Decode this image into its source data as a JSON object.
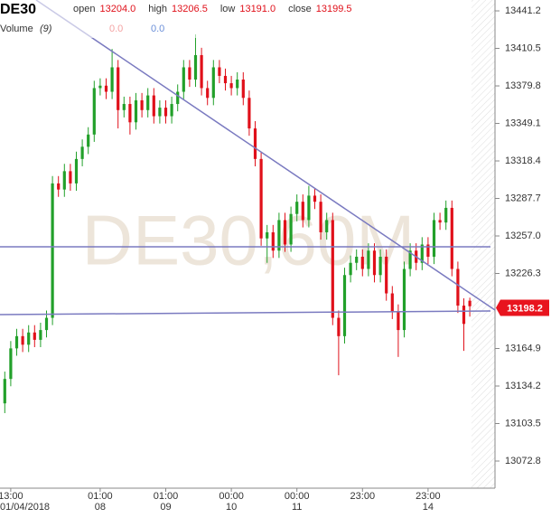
{
  "chart_data": {
    "type": "candlestick",
    "symbol": "DE30",
    "watermark": "DE30,60M",
    "ohlc_header": [
      {
        "name": "open",
        "value": 13204,
        "label": "13204.0"
      },
      {
        "name": "high",
        "value": 13206.5
      },
      {
        "name": "low",
        "value": 13191,
        "label": "13191.0"
      },
      {
        "name": "close",
        "value": 13199.5
      }
    ],
    "volume": {
      "name": "Volume",
      "period": "(9)",
      "values": [
        {
          "value": 0,
          "label": "0.0",
          "color": "#f4a3a3"
        },
        {
          "value": 0,
          "label": "0.0",
          "color": "#6b8fd8"
        }
      ]
    },
    "categories": [
      null,
      "13:00",
      null,
      null,
      null,
      null,
      null,
      null,
      null,
      null,
      null,
      null,
      null,
      null,
      null,
      null,
      "01:00",
      null,
      null,
      null,
      null,
      null,
      null,
      null,
      null,
      null,
      null,
      "01:00",
      null,
      null,
      null,
      null,
      null,
      null,
      null,
      null,
      null,
      null,
      "00:00",
      null,
      null,
      null,
      null,
      null,
      null,
      null,
      null,
      null,
      null,
      "00:00",
      null,
      null,
      null,
      null,
      null,
      null,
      null,
      null,
      null,
      null,
      "23:00",
      null,
      null,
      null,
      null,
      null,
      null,
      null,
      null,
      null,
      null,
      "23:00",
      null,
      null,
      null,
      null,
      null,
      null,
      null
    ],
    "dates": [
      null,
      "01/04/2018",
      null,
      null,
      null,
      null,
      null,
      null,
      null,
      null,
      null,
      null,
      null,
      null,
      null,
      null,
      "08",
      null,
      null,
      null,
      null,
      null,
      null,
      null,
      null,
      null,
      null,
      "09",
      null,
      null,
      null,
      null,
      null,
      null,
      null,
      null,
      null,
      null,
      "10",
      null,
      null,
      null,
      null,
      null,
      null,
      null,
      null,
      null,
      null,
      "11",
      null,
      null,
      null,
      null,
      null,
      null,
      null,
      null,
      null,
      null,
      null,
      null,
      null,
      null,
      null,
      null,
      null,
      null,
      null,
      null,
      null,
      "14",
      null,
      null,
      null,
      null,
      null,
      null,
      null
    ],
    "open": [
      13120,
      13140,
      13165,
      13175,
      13168,
      13178,
      13172,
      13180,
      13190,
      13300,
      13295,
      13310,
      13300,
      13320,
      13330,
      13340,
      13378,
      13380,
      13375,
      13395,
      13360,
      13365,
      13350,
      13368,
      13360,
      13372,
      13355,
      13362,
      13355,
      13365,
      13375,
      13395,
      13385,
      13405,
      13378,
      13370,
      13395,
      13388,
      13382,
      13378,
      13385,
      13370,
      13345,
      13320,
      13255,
      13260,
      13245,
      13270,
      13250,
      13275,
      13285,
      13270,
      13290,
      13285,
      13260,
      13270,
      13190,
      13175,
      13225,
      13235,
      13240,
      13230,
      13245,
      13225,
      13240,
      13210,
      13195,
      13180,
      13230,
      13245,
      13235,
      13250,
      13240,
      13270,
      13268,
      13280,
      13230,
      13200,
      13204
    ],
    "high": [
      13146,
      13171,
      13181,
      13181,
      13184,
      13184,
      13186,
      13196,
      13306,
      13306,
      13316,
      13316,
      13326,
      13336,
      13346,
      13384,
      13386,
      13386,
      13410,
      13401,
      13371,
      13371,
      13374,
      13374,
      13378,
      13378,
      13368,
      13368,
      13371,
      13381,
      13401,
      13401,
      13422,
      13411,
      13384,
      13401,
      13401,
      13394,
      13388,
      13391,
      13391,
      13376,
      13351,
      13326,
      13266,
      13266,
      13276,
      13276,
      13281,
      13291,
      13291,
      13298,
      13296,
      13291,
      13276,
      13276,
      13196,
      13231,
      13241,
      13246,
      13246,
      13251,
      13251,
      13246,
      13246,
      13216,
      13201,
      13236,
      13251,
      13251,
      13256,
      13256,
      13276,
      13276,
      13286,
      13286,
      13236,
      13206,
      13206.5
    ],
    "low": [
      13112,
      13134,
      13159,
      13162,
      13162,
      13166,
      13166,
      13174,
      13184,
      13289,
      13289,
      13294,
      13294,
      13314,
      13324,
      13334,
      13372,
      13369,
      13369,
      13345,
      13354,
      13340,
      13344,
      13354,
      13354,
      13349,
      13349,
      13349,
      13349,
      13359,
      13369,
      13379,
      13379,
      13372,
      13364,
      13364,
      13382,
      13376,
      13372,
      13372,
      13364,
      13339,
      13314,
      13249,
      13235,
      13239,
      13239,
      13244,
      13244,
      13269,
      13264,
      13264,
      13279,
      13254,
      13254,
      13184,
      13143,
      13169,
      13219,
      13229,
      13224,
      13224,
      13219,
      13219,
      13204,
      13189,
      13158,
      13174,
      13224,
      13229,
      13229,
      13234,
      13234,
      13262,
      13262,
      13224,
      13194,
      13163,
      13191
    ],
    "close": [
      13140,
      13165,
      13175,
      13168,
      13178,
      13172,
      13180,
      13190,
      13300,
      13295,
      13310,
      13300,
      13320,
      13330,
      13340,
      13378,
      13380,
      13375,
      13395,
      13360,
      13365,
      13350,
      13368,
      13360,
      13372,
      13355,
      13362,
      13355,
      13365,
      13375,
      13395,
      13385,
      13405,
      13378,
      13370,
      13395,
      13388,
      13382,
      13378,
      13385,
      13370,
      13345,
      13320,
      13255,
      13260,
      13245,
      13270,
      13250,
      13275,
      13285,
      13270,
      13290,
      13285,
      13260,
      13270,
      13190,
      13175,
      13225,
      13235,
      13240,
      13230,
      13245,
      13225,
      13240,
      13210,
      13195,
      13180,
      13230,
      13245,
      13235,
      13250,
      13240,
      13270,
      13268,
      13280,
      13230,
      13200,
      13185,
      13199.5
    ],
    "up_color": "#22a02a",
    "down_color": "#e0101a",
    "ylim": [
      13050.6,
      13450.1
    ],
    "yticks": [
      13441.2,
      13410.5,
      13379.8,
      13349.1,
      13318.4,
      13287.7,
      {
        "value": 13257,
        "label": "13257.0"
      },
      13226.3,
      13164.9,
      13134.2,
      13103.5,
      13072.8
    ],
    "last_price": {
      "value": 13198.2,
      "label": "13198.2",
      "color": "#e8141e"
    }
  }
}
